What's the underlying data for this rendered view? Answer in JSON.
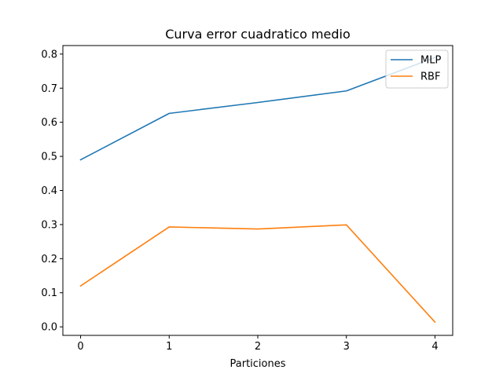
{
  "chart_data": {
    "type": "line",
    "title": "Curva error cuadratico medio",
    "xlabel": "Particiones",
    "ylabel": "",
    "x": [
      0,
      1,
      2,
      3,
      4
    ],
    "xticks": [
      "0",
      "1",
      "2",
      "3",
      "4"
    ],
    "yticks": [
      "0.0",
      "0.1",
      "0.2",
      "0.3",
      "0.4",
      "0.5",
      "0.6",
      "0.7",
      "0.8"
    ],
    "xlim": [
      -0.2,
      4.2
    ],
    "ylim": [
      -0.025,
      0.825
    ],
    "grid": false,
    "legend_position": "top-right",
    "series": [
      {
        "name": "MLP",
        "color": "#1f77b4",
        "values": [
          0.49,
          0.626,
          0.658,
          0.692,
          0.79
        ]
      },
      {
        "name": "RBF",
        "color": "#ff7f0e",
        "values": [
          0.12,
          0.293,
          0.287,
          0.299,
          0.014
        ]
      }
    ]
  }
}
